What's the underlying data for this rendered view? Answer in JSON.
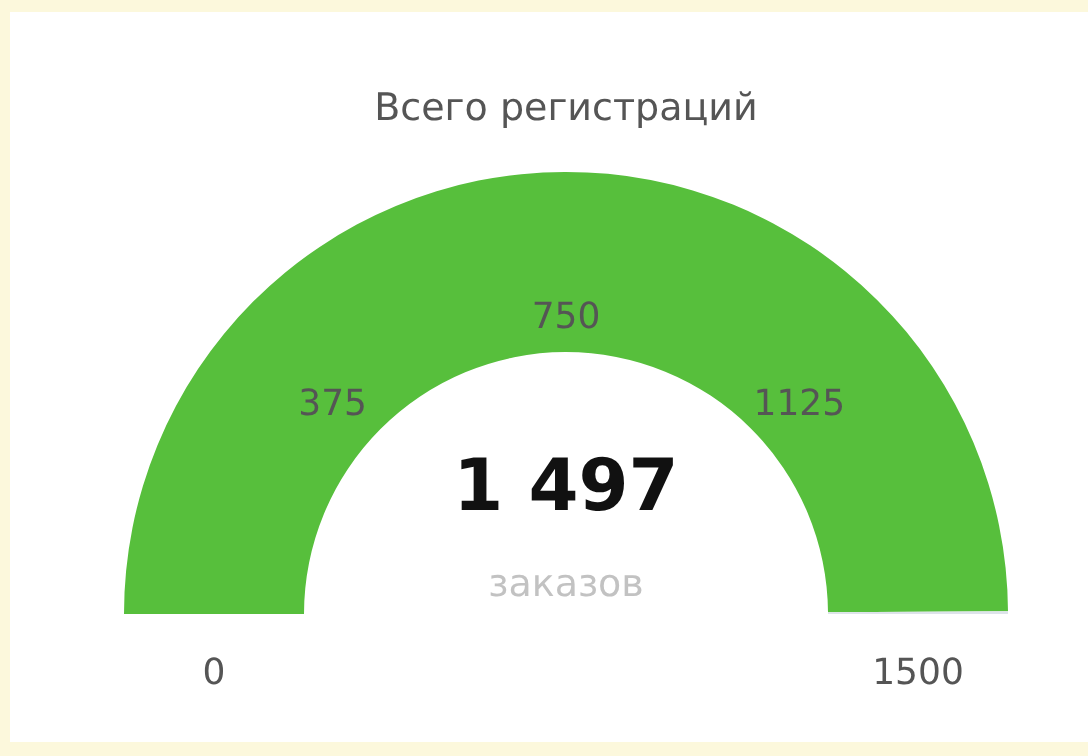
{
  "chart_data": {
    "type": "donut",
    "title": "Всего регистраций",
    "categories": [
      null,
      null
    ],
    "values": [
      1497,
      3
    ],
    "colors": [
      "#57bf3c",
      "#dde3ea"
    ],
    "value_labels": [
      "1 497",
      null
    ],
    "annotations": [
      "0",
      "375",
      "750",
      "1125",
      "1500",
      "заказов"
    ]
  }
}
